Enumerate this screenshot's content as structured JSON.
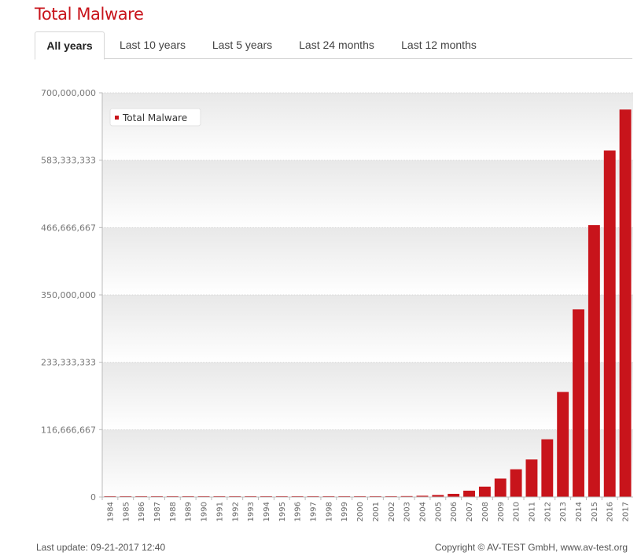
{
  "title": "Total Malware",
  "tabs": [
    {
      "label": "All years",
      "active": true
    },
    {
      "label": "Last 10 years",
      "active": false
    },
    {
      "label": "Last 5 years",
      "active": false
    },
    {
      "label": "Last 24 months",
      "active": false
    },
    {
      "label": "Last 12 months",
      "active": false
    }
  ],
  "footer": {
    "last_update": "Last update: 09-21-2017 12:40",
    "copyright": "Copyright © AV-TEST GmbH, www.av-test.org"
  },
  "colors": {
    "bar": "#c8141b",
    "title": "#c8141b"
  },
  "chart_data": {
    "type": "bar",
    "title": "",
    "xlabel": "",
    "ylabel": "",
    "ylim": [
      0,
      700000000
    ],
    "yticks": [
      0,
      116666667,
      233333333,
      350000000,
      466666667,
      583333333,
      700000000
    ],
    "ytick_labels": [
      "0",
      "116,666,667",
      "233,333,333",
      "350,000,000",
      "466,666,667",
      "583,333,333",
      "700,000,000"
    ],
    "legend": {
      "position": "top-left",
      "entries": [
        "Total Malware"
      ]
    },
    "grid": true,
    "categories": [
      "1984",
      "1985",
      "1986",
      "1987",
      "1988",
      "1989",
      "1990",
      "1991",
      "1992",
      "1993",
      "1994",
      "1995",
      "1996",
      "1997",
      "1998",
      "1999",
      "2000",
      "2001",
      "2002",
      "2003",
      "2004",
      "2005",
      "2006",
      "2007",
      "2008",
      "2009",
      "2010",
      "2011",
      "2012",
      "2013",
      "2014",
      "2015",
      "2016",
      "2017"
    ],
    "series": [
      {
        "name": "Total Malware",
        "values": [
          100,
          200,
          500,
          1000,
          2000,
          5000,
          10000,
          20000,
          40000,
          60000,
          80000,
          100000,
          150000,
          200000,
          300000,
          500000,
          700000,
          900000,
          1200000,
          1600000,
          2200000,
          3500000,
          5500000,
          11000000,
          18000000,
          32000000,
          48000000,
          65000000,
          100000000,
          182000000,
          325000000,
          471000000,
          600000000,
          671000000
        ]
      }
    ]
  }
}
